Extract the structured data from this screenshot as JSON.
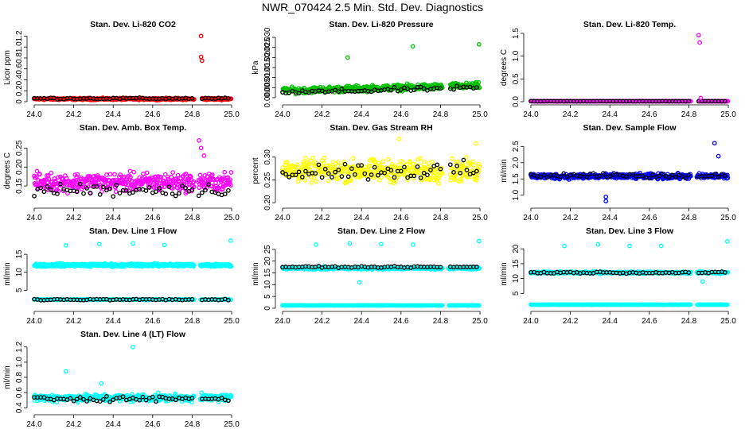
{
  "page": {
    "title": "NWR_070424  2.5 Min. Std. Dev. Diagnostics"
  },
  "chart_data": [
    {
      "id": "co2",
      "type": "scatter",
      "title": "Stan. Dev. Li-820 CO2",
      "ylabel": "Licor ppm",
      "xlim": [
        23.98,
        25.02
      ],
      "ylim": [
        0,
        1.25
      ],
      "xticks": [
        "24.0",
        "24.2",
        "24.4",
        "24.6",
        "24.8",
        "25.0"
      ],
      "yticks": [
        0,
        0.2,
        0.4,
        0.6,
        0.8,
        1.0,
        1.2
      ],
      "ytick_labels": [
        "0",
        "0.2",
        "0.4",
        "0.6",
        "0.8",
        "1.0",
        "1.2"
      ],
      "color": "#ff0000",
      "base": 0.05,
      "noise": 0.025,
      "gap": [
        24.81,
        24.85
      ],
      "outliers": [
        [
          24.845,
          1.2
        ],
        [
          24.845,
          0.82
        ],
        [
          24.85,
          0.75
        ]
      ],
      "black_base": 0.06,
      "black_noise": 0.02
    },
    {
      "id": "pres",
      "type": "scatter",
      "title": "Stan. Dev. Li-820 Pressure",
      "ylabel": "kPa",
      "xlim": [
        23.98,
        25.02
      ],
      "ylim": [
        -0.002,
        0.032
      ],
      "xticks": [
        "24.0",
        "24.2",
        "24.4",
        "24.6",
        "24.8",
        "25.0"
      ],
      "yticks": [
        0,
        0.005,
        0.01,
        0.015,
        0.02,
        0.025,
        0.03
      ],
      "ytick_labels": [
        "0.000",
        "0.005",
        "0.010",
        "0.015",
        "0.020",
        "0.025",
        "0.030"
      ],
      "color": "#00c000",
      "base": 0.0035,
      "trend": 0.0025,
      "noise": 0.0022,
      "gap": [
        24.81,
        24.85
      ],
      "outliers": [
        [
          24.33,
          0.02
        ],
        [
          24.66,
          0.0255
        ],
        [
          24.995,
          0.0265
        ]
      ],
      "black_base": 0.0025,
      "black_noise": 0.0015
    },
    {
      "id": "temp",
      "type": "scatter",
      "title": "Stan. Dev. Li-820 Temp.",
      "ylabel": "degrees C",
      "xlim": [
        23.98,
        25.02
      ],
      "ylim": [
        0,
        1.5
      ],
      "xticks": [
        "24.0",
        "24.2",
        "24.4",
        "24.6",
        "24.8",
        "25.0"
      ],
      "yticks": [
        0,
        0.5,
        1.0,
        1.5
      ],
      "ytick_labels": [
        "0.0",
        "0.5",
        "1.0",
        "1.5"
      ],
      "color": "#ff00ff",
      "base": 0.01,
      "noise": 0.005,
      "gap": [
        24.81,
        24.85
      ],
      "outliers": [
        [
          24.85,
          1.46
        ],
        [
          24.855,
          1.3
        ],
        [
          24.86,
          0.08
        ]
      ],
      "black_base": 0.01,
      "black_noise": 0.004
    },
    {
      "id": "box",
      "type": "scatter",
      "title": "Stan. Dev. Amb. Box Temp.",
      "ylabel": "degrees C",
      "xlim": [
        23.98,
        25.02
      ],
      "ylim": [
        0.1,
        0.28
      ],
      "xticks": [
        "24.0",
        "24.2",
        "24.4",
        "24.6",
        "24.8",
        "25.0"
      ],
      "yticks": [
        0.15,
        0.2,
        0.25
      ],
      "ytick_labels": [
        "0.15",
        "0.20",
        "0.25"
      ],
      "color": "#ff00ff",
      "base": 0.16,
      "noise": 0.035,
      "gap": [
        24.81,
        24.83
      ],
      "outliers": [
        [
          24.835,
          0.27
        ],
        [
          24.845,
          0.25
        ],
        [
          24.86,
          0.23
        ]
      ],
      "black_base": 0.14,
      "black_noise": 0.025
    },
    {
      "id": "rh",
      "type": "scatter",
      "title": "Stan. Dev. Gas Stream RH",
      "ylabel": "percent",
      "xlim": [
        23.98,
        25.02
      ],
      "ylim": [
        0.195,
        0.345
      ],
      "xticks": [
        "24.0",
        "24.2",
        "24.4",
        "24.6",
        "24.8",
        "25.0"
      ],
      "yticks": [
        0.2,
        0.25,
        0.3
      ],
      "ytick_labels": [
        "0.20",
        "0.25",
        "0.30"
      ],
      "color": "#ffff00",
      "base": 0.27,
      "noise": 0.035,
      "gap": [
        24.81,
        24.85
      ],
      "outliers": [
        [
          24.59,
          0.34
        ],
        [
          24.98,
          0.33
        ]
      ],
      "black_base": 0.27,
      "black_noise": 0.028
    },
    {
      "id": "flow",
      "type": "scatter",
      "title": "Stan. Dev. Sample Flow",
      "ylabel": "ml/min",
      "xlim": [
        23.98,
        25.02
      ],
      "ylim": [
        0.7,
        2.8
      ],
      "xticks": [
        "24.0",
        "24.2",
        "24.4",
        "24.6",
        "24.8",
        "25.0"
      ],
      "yticks": [
        1.0,
        1.5,
        2.0,
        2.5
      ],
      "ytick_labels": [
        "1.0",
        "1.5",
        "2.0",
        "2.5"
      ],
      "color": "#0000ff",
      "base": 1.58,
      "noise": 0.12,
      "gap": [
        24.81,
        24.84
      ],
      "outliers": [
        [
          24.38,
          0.82
        ],
        [
          24.38,
          0.95
        ],
        [
          24.93,
          2.6
        ],
        [
          24.95,
          2.2
        ]
      ],
      "black_base": 1.6,
      "black_noise": 0.1
    },
    {
      "id": "line1",
      "type": "scatter",
      "title": "Stan. Dev. Line 1 Flow",
      "ylabel": "ml/min",
      "xlim": [
        23.98,
        25.02
      ],
      "ylim": [
        0,
        19
      ],
      "xticks": [
        "24.0",
        "24.2",
        "24.4",
        "24.6",
        "24.8",
        "25.0"
      ],
      "yticks": [
        5,
        10,
        15
      ],
      "ytick_labels": [
        "5",
        "10",
        "15"
      ],
      "color": "#00ffff",
      "base": 12,
      "noise": 0.6,
      "gap": [
        24.81,
        24.84
      ],
      "low_band": 2.4,
      "outliers": [
        [
          24.16,
          17.5
        ],
        [
          24.33,
          17.8
        ],
        [
          24.5,
          18
        ],
        [
          24.66,
          17.6
        ],
        [
          24.995,
          18.8
        ]
      ],
      "black_base": 2.4,
      "black_noise": 0.25
    },
    {
      "id": "line2",
      "type": "scatter",
      "title": "Stan. Dev. Line 2 Flow",
      "ylabel": "ml/min",
      "xlim": [
        23.98,
        25.02
      ],
      "ylim": [
        0,
        29
      ],
      "xticks": [
        "24.0",
        "24.2",
        "24.4",
        "24.6",
        "24.8",
        "25.0"
      ],
      "yticks": [
        0,
        5,
        10,
        15,
        20,
        25
      ],
      "ytick_labels": [
        "0",
        "5",
        "10",
        "15",
        "20",
        "25"
      ],
      "color": "#00ffff",
      "base": 17,
      "noise": 0.8,
      "gap": [
        24.81,
        24.84
      ],
      "low_band": 1.2,
      "outliers": [
        [
          24.17,
          27
        ],
        [
          24.34,
          27.5
        ],
        [
          24.5,
          27.2
        ],
        [
          24.66,
          27
        ],
        [
          24.995,
          28.5
        ],
        [
          24.39,
          11
        ]
      ],
      "black_base": 17.5,
      "black_noise": 0.4
    },
    {
      "id": "line3",
      "type": "scatter",
      "title": "Stan. Dev. Line 3 Flow",
      "ylabel": "ml/min",
      "xlim": [
        23.98,
        25.02
      ],
      "ylim": [
        0,
        23
      ],
      "xticks": [
        "24.0",
        "24.2",
        "24.4",
        "24.6",
        "24.8",
        "25.0"
      ],
      "yticks": [
        5,
        10,
        15,
        20
      ],
      "ytick_labels": [
        "5",
        "10",
        "15",
        "20"
      ],
      "color": "#00ffff",
      "base": 12,
      "noise": 0.5,
      "gap": [
        24.81,
        24.84
      ],
      "low_band": 1.2,
      "outliers": [
        [
          24.17,
          21
        ],
        [
          24.34,
          21.5
        ],
        [
          24.5,
          21
        ],
        [
          24.66,
          21
        ],
        [
          24.995,
          22.5
        ],
        [
          24.87,
          9
        ]
      ],
      "black_base": 12,
      "black_noise": 0.4
    },
    {
      "id": "line4",
      "type": "scatter",
      "title": "Stan. Dev. Line 4 (LT) Flow",
      "ylabel": "ml/min",
      "xlim": [
        23.98,
        25.02
      ],
      "ylim": [
        0.35,
        1.25
      ],
      "xticks": [
        "24.0",
        "24.2",
        "24.4",
        "24.6",
        "24.8",
        "25.0"
      ],
      "yticks": [
        0.4,
        0.6,
        0.8,
        1.0,
        1.2
      ],
      "ytick_labels": [
        "0.4",
        "0.6",
        "0.8",
        "1.0",
        "1.2"
      ],
      "color": "#00ffff",
      "base": 0.53,
      "noise": 0.07,
      "gap": [
        24.81,
        24.84
      ],
      "outliers": [
        [
          24.16,
          0.88
        ],
        [
          24.5,
          1.2
        ],
        [
          24.34,
          0.72
        ]
      ],
      "black_base": 0.52,
      "black_noise": 0.05
    }
  ]
}
